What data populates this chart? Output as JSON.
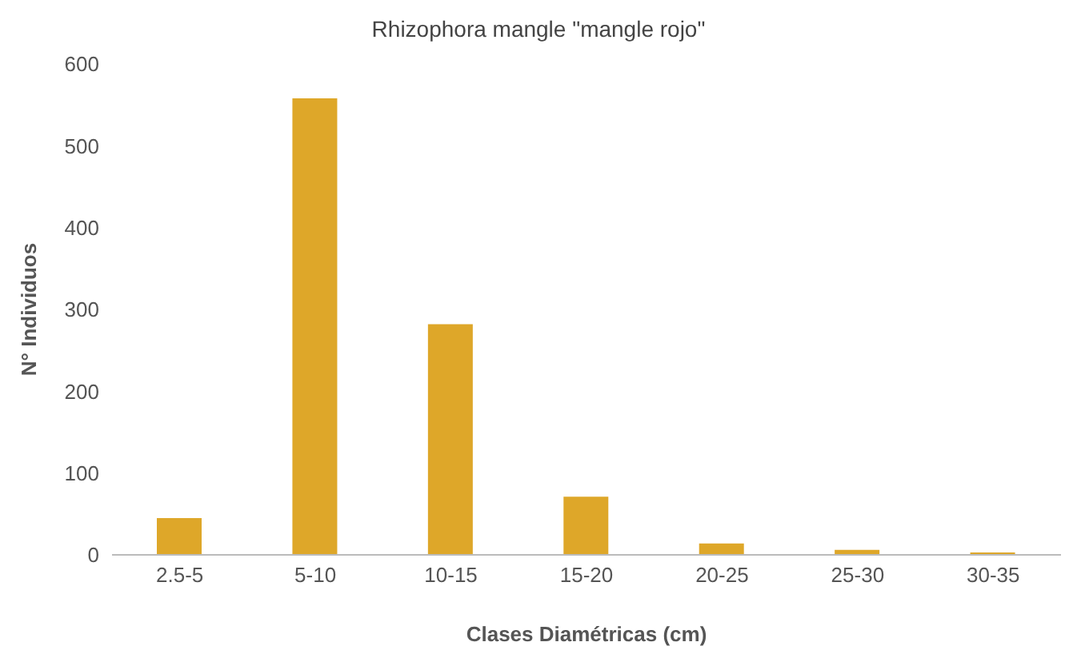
{
  "chart_data": {
    "type": "bar",
    "title": "Rhizophora mangle \"mangle rojo\"",
    "xlabel": "Clases Diamétricas (cm)",
    "ylabel": "N° Individuos",
    "categories": [
      "2.5-5",
      "5-10",
      "10-15",
      "15-20",
      "20-25",
      "25-30",
      "30-35"
    ],
    "values": [
      45,
      558,
      282,
      71,
      14,
      6,
      3
    ],
    "color": "#dea729",
    "ylim": [
      0,
      600
    ],
    "yticks": [
      0,
      100,
      200,
      300,
      400,
      500,
      600
    ],
    "grid": false
  }
}
